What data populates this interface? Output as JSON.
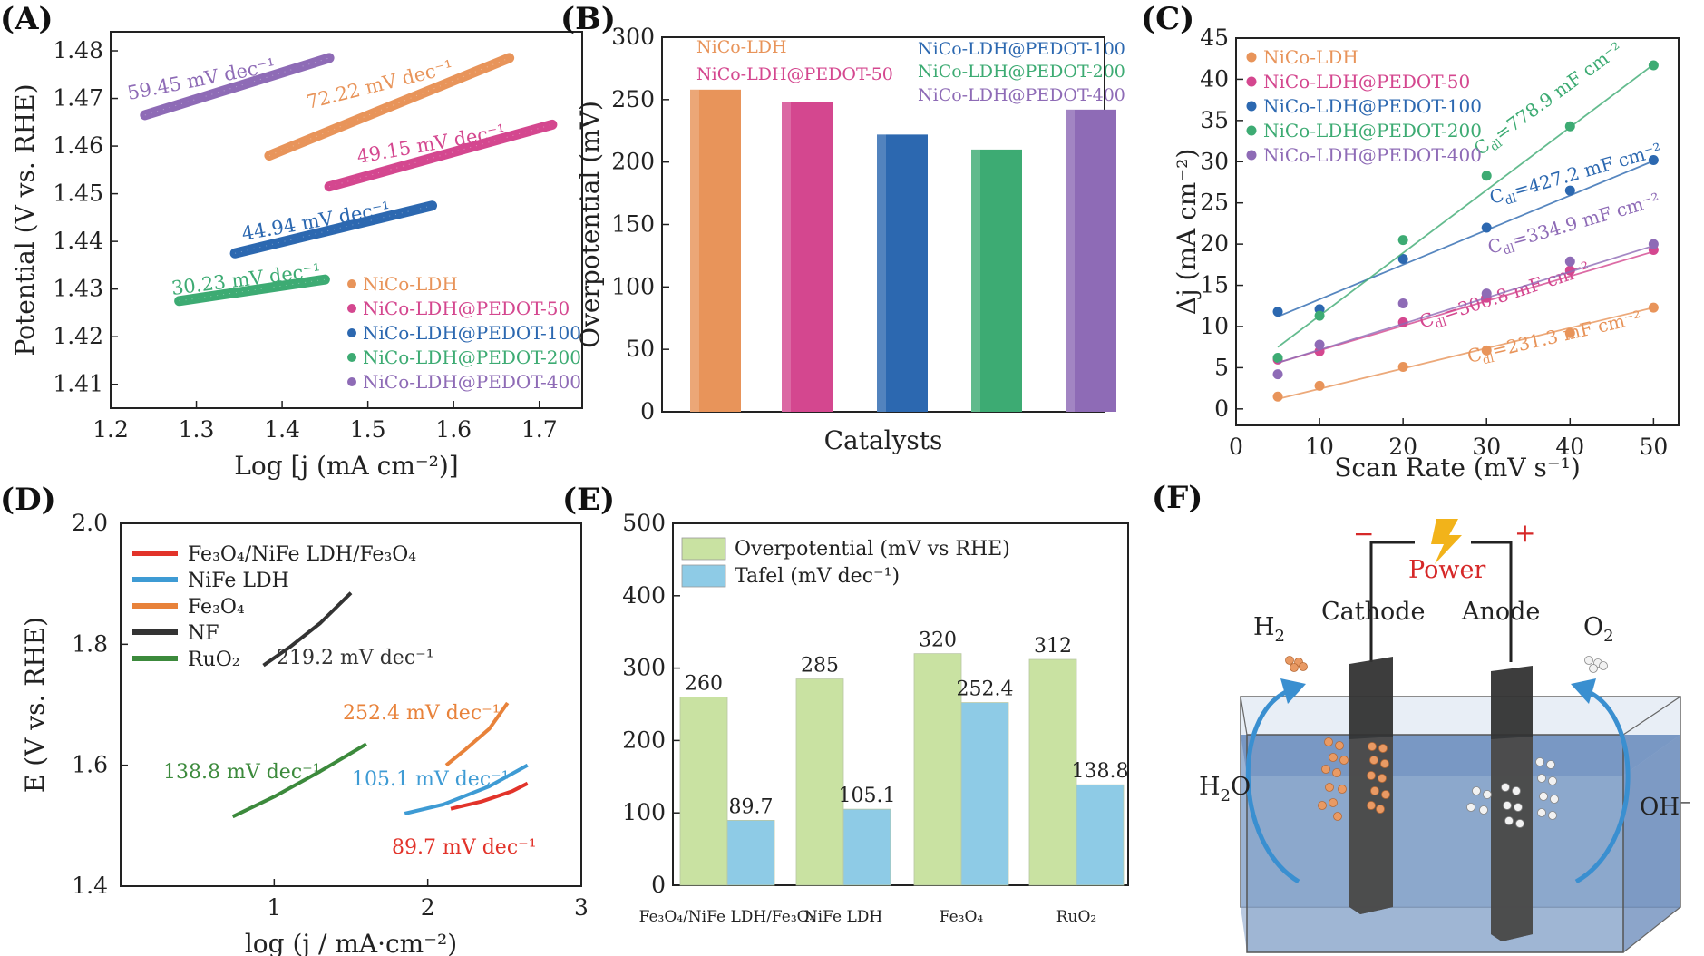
{
  "panels": {
    "A": {
      "label": "(A)"
    },
    "B": {
      "label": "(B)"
    },
    "C": {
      "label": "(C)"
    },
    "D": {
      "label": "(D)"
    },
    "E": {
      "label": "(E)"
    },
    "F": {
      "label": "(F)"
    }
  },
  "colors": {
    "nico_ldh": "#e8945a",
    "pedot50": "#d4478f",
    "pedot100": "#2c68b0",
    "pedot200": "#3dab73",
    "pedot400": "#8e6bb6",
    "red": "#e2332a",
    "sky": "#3e9bd4",
    "orange": "#e8823a",
    "black": "#333333",
    "green": "#3c8a3c",
    "bar_green": "#c9e2a2",
    "bar_blue": "#8ecbe6"
  },
  "chart_data": [
    {
      "panel": "A",
      "type": "line",
      "title": "",
      "xlabel": "Log [j (mA cm⁻²)]",
      "ylabel": "Potential (V vs. RHE)",
      "xlim": [
        1.2,
        1.75
      ],
      "ylim": [
        1.405,
        1.484
      ],
      "xticks": [
        1.2,
        1.3,
        1.4,
        1.5,
        1.6,
        1.7
      ],
      "yticks": [
        1.41,
        1.42,
        1.43,
        1.44,
        1.45,
        1.46,
        1.47,
        1.48
      ],
      "legend_position": "bottom-right",
      "series": [
        {
          "name": "NiCo-LDH",
          "color_key": "nico_ldh",
          "x": [
            1.385,
            1.665
          ],
          "y": [
            1.458,
            1.4785
          ],
          "annotation": "72.22 mV dec⁻¹"
        },
        {
          "name": "NiCo-LDH@PEDOT-50",
          "color_key": "pedot50",
          "x": [
            1.455,
            1.715
          ],
          "y": [
            1.4515,
            1.4645
          ],
          "annotation": "49.15 mV dec⁻¹"
        },
        {
          "name": "NiCo-LDH@PEDOT-100",
          "color_key": "pedot100",
          "x": [
            1.345,
            1.575
          ],
          "y": [
            1.4375,
            1.4475
          ],
          "annotation": "44.94 mV dec⁻¹"
        },
        {
          "name": "NiCo-LDH@PEDOT-200",
          "color_key": "pedot200",
          "x": [
            1.28,
            1.45
          ],
          "y": [
            1.4275,
            1.432
          ],
          "annotation": "30.23 mV dec⁻¹"
        },
        {
          "name": "NiCo-LDH@PEDOT-400",
          "color_key": "pedot400",
          "x": [
            1.24,
            1.455
          ],
          "y": [
            1.4665,
            1.4785
          ],
          "annotation": "59.45 mV dec⁻¹"
        }
      ]
    },
    {
      "panel": "B",
      "type": "bar",
      "title": "",
      "xlabel": "Catalysts",
      "ylabel": "Overpotential (mV)",
      "ylim": [
        0,
        300
      ],
      "yticks": [
        0,
        50,
        100,
        150,
        200,
        250,
        300
      ],
      "categories": [
        "NiCo-LDH",
        "NiCo-LDH@PEDOT-50",
        "NiCo-LDH@PEDOT-100",
        "NiCo-LDH@PEDOT-200",
        "NiCo-LDH@PEDOT-400"
      ],
      "values": [
        258,
        248,
        222,
        210,
        242
      ],
      "color_keys": [
        "nico_ldh",
        "pedot50",
        "pedot100",
        "pedot200",
        "pedot400"
      ],
      "legend_position": "top"
    },
    {
      "panel": "C",
      "type": "scatter",
      "title": "",
      "xlabel": "Scan Rate (mV s⁻¹)",
      "ylabel": "Δj (mA cm⁻²)",
      "xlim": [
        0,
        53
      ],
      "ylim": [
        -2,
        45
      ],
      "xticks": [
        0,
        10,
        20,
        30,
        40,
        50
      ],
      "yticks": [
        0,
        5,
        10,
        15,
        20,
        25,
        30,
        35,
        40,
        45
      ],
      "x": [
        5,
        10,
        20,
        30,
        40,
        50
      ],
      "legend_position": "top-left",
      "series": [
        {
          "name": "NiCo-LDH",
          "color_key": "nico_ldh",
          "y": [
            1.5,
            2.8,
            5.1,
            7.1,
            9.2,
            12.3
          ],
          "fit": [
            1.2,
            12.3
          ],
          "annotation_base": "C",
          "annotation_sub": "dl",
          "annotation_rest": "=231.3 mF cm⁻²"
        },
        {
          "name": "NiCo-LDH@PEDOT-50",
          "color_key": "pedot50",
          "y": [
            6.0,
            7.0,
            10.5,
            13.5,
            16.8,
            19.3
          ],
          "fit": [
            5.6,
            19.1
          ],
          "annotation_base": "C",
          "annotation_sub": "dl",
          "annotation_rest": "=300.8 mF cm⁻²"
        },
        {
          "name": "NiCo-LDH@PEDOT-100",
          "color_key": "pedot100",
          "y": [
            11.8,
            12.1,
            18.2,
            22.0,
            26.5,
            30.2
          ],
          "fit": [
            11.2,
            30.1
          ],
          "annotation_base": "C",
          "annotation_sub": "dl",
          "annotation_rest": "=427.2 mF cm⁻²"
        },
        {
          "name": "NiCo-LDH@PEDOT-200",
          "color_key": "pedot200",
          "y": [
            6.2,
            11.3,
            20.5,
            28.3,
            34.3,
            41.7
          ],
          "fit": [
            7.5,
            41.8
          ],
          "annotation_base": "C",
          "annotation_sub": "dl",
          "annotation_rest": "=778.9 mF cm⁻²"
        },
        {
          "name": "NiCo-LDH@PEDOT-400",
          "color_key": "pedot400",
          "y": [
            4.2,
            7.8,
            12.8,
            14.0,
            17.9,
            20.0
          ],
          "fit": [
            5.6,
            19.8
          ],
          "annotation_base": "C",
          "annotation_sub": "dl",
          "annotation_rest": "=334.9 mF cm⁻²"
        }
      ]
    },
    {
      "panel": "D",
      "type": "line",
      "title": "",
      "xlabel": "log (j / mA·cm⁻²)",
      "ylabel": "E (V vs. RHE)",
      "xlim": [
        0,
        3
      ],
      "ylim": [
        1.4,
        2.0
      ],
      "xticks": [
        1,
        2,
        3
      ],
      "yticks": [
        1.4,
        1.6,
        1.8,
        2.0
      ],
      "legend_position": "top-left",
      "series": [
        {
          "name": "Fe₃O₄/NiFe LDH/Fe₃O₄",
          "color_key": "red",
          "x": [
            2.15,
            2.35,
            2.55,
            2.65
          ],
          "y": [
            1.528,
            1.54,
            1.557,
            1.57
          ],
          "annotation": "89.7 mV dec⁻¹"
        },
        {
          "name": "NiFe LDH",
          "color_key": "sky",
          "x": [
            1.85,
            2.1,
            2.4,
            2.65
          ],
          "y": [
            1.52,
            1.535,
            1.565,
            1.6
          ],
          "annotation": "105.1 mV dec⁻¹"
        },
        {
          "name": "Fe₃O₄",
          "color_key": "orange",
          "x": [
            2.12,
            2.25,
            2.4,
            2.52
          ],
          "y": [
            1.6,
            1.627,
            1.66,
            1.703
          ],
          "annotation": "252.4 mV dec⁻¹"
        },
        {
          "name": "NF",
          "color_key": "black",
          "x": [
            0.93,
            1.1,
            1.3,
            1.5
          ],
          "y": [
            1.765,
            1.795,
            1.835,
            1.885
          ],
          "annotation": "219.2 mV dec⁻¹"
        },
        {
          "name": "RuO₂",
          "color_key": "green",
          "x": [
            0.73,
            1.0,
            1.3,
            1.6
          ],
          "y": [
            1.515,
            1.548,
            1.59,
            1.635
          ],
          "annotation": "138.8 mV dec⁻¹"
        }
      ]
    },
    {
      "panel": "E",
      "type": "bar",
      "title": "",
      "xlabel": "",
      "ylabel": "",
      "ylim": [
        0,
        500
      ],
      "yticks": [
        0,
        100,
        200,
        300,
        400,
        500
      ],
      "categories": [
        "Fe₃O₄/NiFe LDH/Fe₃O₄",
        "NiFe LDH",
        "Fe₃O₄",
        "RuO₂"
      ],
      "legend_position": "top-left",
      "series": [
        {
          "name": "Overpotential (mV vs RHE)",
          "color_key": "bar_green",
          "values": [
            260,
            285,
            320,
            312
          ],
          "labels": [
            "260",
            "285",
            "320",
            "312"
          ]
        },
        {
          "name": "Tafel (mV dec⁻¹)",
          "color_key": "bar_blue",
          "values": [
            89.7,
            105.1,
            252.4,
            138.8
          ],
          "labels": [
            "89.7",
            "105.1",
            "252.4",
            "138.8"
          ]
        }
      ]
    }
  ],
  "schematic": {
    "power": "Power",
    "minus": "−",
    "plus": "+",
    "cathode": "Cathode",
    "anode": "Anode",
    "h2_base": "H",
    "h2_sub": "2",
    "o2_base": "O",
    "o2_sub": "2",
    "h2o_base": "H",
    "h2o_sub": "2",
    "h2o_rest": "O",
    "oh": "OH⁻"
  }
}
